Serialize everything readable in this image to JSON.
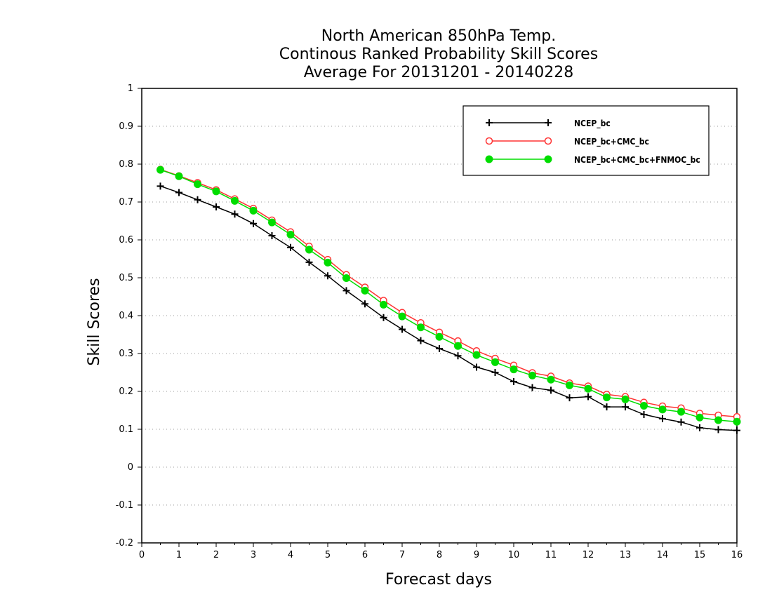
{
  "chart_data": {
    "type": "line",
    "title": [
      "North American 850hPa Temp.",
      "Continous Ranked Probability Skill Scores",
      "Average For 20131201 - 20140228"
    ],
    "xlabel": "Forecast days",
    "ylabel": "Skill Scores",
    "xlim": [
      0,
      16
    ],
    "ylim": [
      -0.2,
      1
    ],
    "x_ticks": [
      0,
      1,
      2,
      3,
      4,
      5,
      6,
      7,
      8,
      9,
      10,
      11,
      12,
      13,
      14,
      15,
      16
    ],
    "y_ticks": [
      -0.2,
      -0.1,
      0,
      0.1,
      0.2,
      0.3,
      0.4,
      0.5,
      0.6,
      0.7,
      0.8,
      0.9,
      1
    ],
    "y_tick_labels": [
      "-0.2",
      "-0.1",
      "0",
      "0.1",
      "0.2",
      "0.3",
      "0.4",
      "0.5",
      "0.6",
      "0.7",
      "0.8",
      "0.9",
      "1"
    ],
    "grid": "horizontal-dotted",
    "legend_position": "top-right",
    "x": [
      0.5,
      1,
      1.5,
      2,
      2.5,
      3,
      3.5,
      4,
      4.5,
      5,
      5.5,
      6,
      6.5,
      7,
      7.5,
      8,
      8.5,
      9,
      9.5,
      10,
      10.5,
      11,
      11.5,
      12,
      12.5,
      13,
      13.5,
      14,
      14.5,
      15,
      15.5,
      16
    ],
    "series": [
      {
        "name": "NCEP_bc",
        "color": "#000000",
        "marker": "plus",
        "values": [
          0.742,
          0.725,
          0.706,
          0.687,
          0.668,
          0.643,
          0.611,
          0.58,
          0.541,
          0.505,
          0.466,
          0.431,
          0.395,
          0.364,
          0.334,
          0.313,
          0.294,
          0.264,
          0.25,
          0.226,
          0.21,
          0.203,
          0.183,
          0.186,
          0.159,
          0.159,
          0.139,
          0.128,
          0.119,
          0.104,
          0.099,
          0.097
        ]
      },
      {
        "name": "NCEP_bc+CMC_bc",
        "color": "#ff3333",
        "marker": "open-circle",
        "values": [
          0.786,
          0.769,
          0.751,
          0.732,
          0.708,
          0.683,
          0.652,
          0.621,
          0.583,
          0.548,
          0.508,
          0.475,
          0.44,
          0.408,
          0.381,
          0.356,
          0.333,
          0.307,
          0.287,
          0.269,
          0.249,
          0.24,
          0.222,
          0.214,
          0.192,
          0.186,
          0.171,
          0.161,
          0.156,
          0.142,
          0.137,
          0.133
        ]
      },
      {
        "name": "NCEP_bc+CMC_bc+FNMOC_bc",
        "color": "#00dd00",
        "marker": "filled-circle",
        "values": [
          0.785,
          0.768,
          0.747,
          0.728,
          0.703,
          0.677,
          0.646,
          0.614,
          0.574,
          0.54,
          0.499,
          0.466,
          0.429,
          0.398,
          0.369,
          0.344,
          0.32,
          0.296,
          0.277,
          0.258,
          0.242,
          0.231,
          0.216,
          0.207,
          0.184,
          0.179,
          0.162,
          0.152,
          0.146,
          0.131,
          0.124,
          0.12
        ]
      }
    ]
  }
}
